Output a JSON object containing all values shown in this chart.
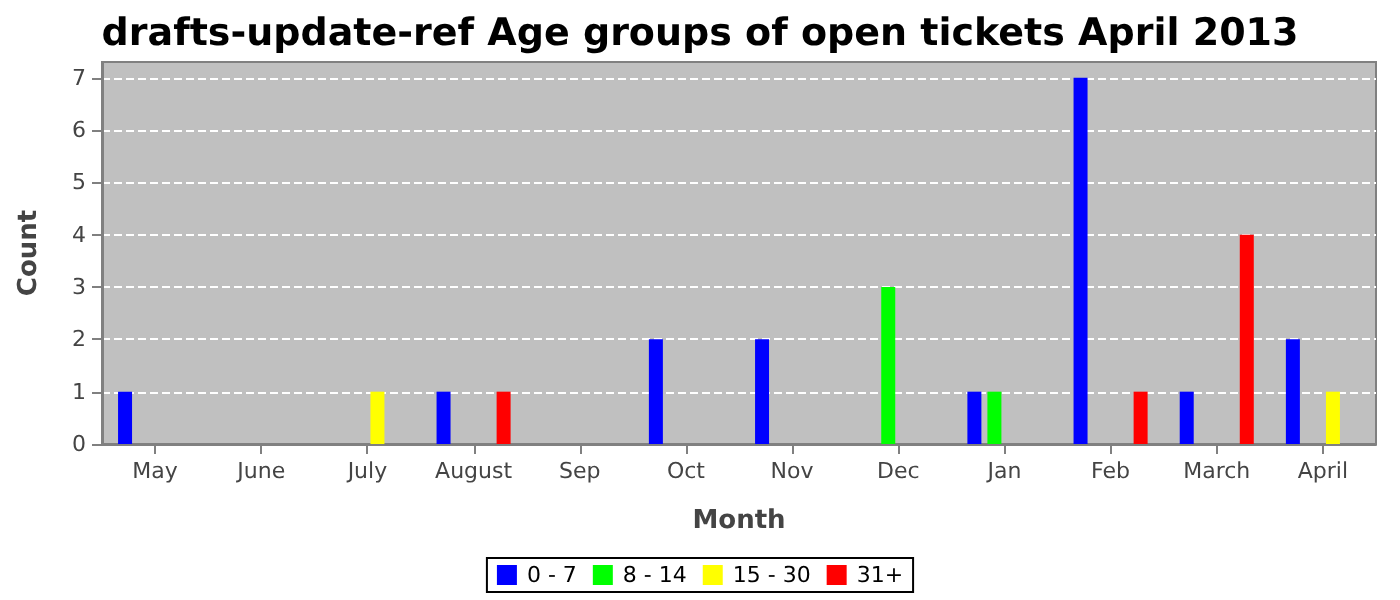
{
  "chart_data": {
    "type": "bar",
    "title": "drafts-update-ref Age groups of open tickets April 2013",
    "xlabel": "Month",
    "ylabel": "Count",
    "categories": [
      "May",
      "June",
      "July",
      "August",
      "Sep",
      "Oct",
      "Nov",
      "Dec",
      "Jan",
      "Feb",
      "March",
      "April"
    ],
    "series": [
      {
        "name": "0 - 7",
        "color": "#0000ff",
        "values": [
          1,
          0,
          0,
          1,
          0,
          2,
          2,
          0,
          1,
          7,
          1,
          2
        ]
      },
      {
        "name": "8 - 14",
        "color": "#00ff00",
        "values": [
          0,
          0,
          0,
          0,
          0,
          0,
          0,
          3,
          1,
          0,
          0,
          0
        ]
      },
      {
        "name": "15 - 30",
        "color": "#ffff00",
        "values": [
          0,
          0,
          1,
          0,
          0,
          0,
          0,
          0,
          0,
          0,
          0,
          1
        ]
      },
      {
        "name": "31+",
        "color": "#ff0000",
        "values": [
          0,
          0,
          0,
          1,
          0,
          0,
          0,
          0,
          0,
          1,
          4,
          0
        ]
      }
    ],
    "ylim": [
      0,
      7.3
    ],
    "yticks": [
      0,
      1,
      2,
      3,
      4,
      5,
      6,
      7
    ],
    "grid": "y",
    "legend": "bottom"
  }
}
